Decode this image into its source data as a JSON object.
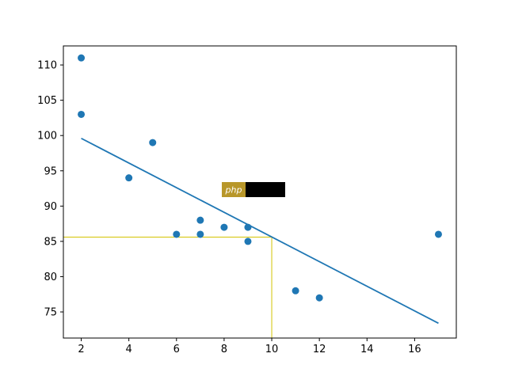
{
  "chart_data": {
    "type": "scatter",
    "title": "",
    "xlabel": "",
    "ylabel": "",
    "xlim": [
      1.25,
      17.75
    ],
    "ylim": [
      71.3,
      112.7
    ],
    "x_ticks": [
      2,
      4,
      6,
      8,
      10,
      12,
      14,
      16
    ],
    "y_ticks": [
      75,
      80,
      85,
      90,
      95,
      100,
      105,
      110
    ],
    "grid": false,
    "points": {
      "x": [
        2,
        2,
        5,
        4,
        7,
        6,
        7,
        8,
        9,
        9,
        11,
        12,
        17
      ],
      "y": [
        111,
        103,
        99,
        94,
        88,
        86,
        86,
        87,
        87,
        85,
        78,
        77,
        86
      ],
      "color": "#1f77b4"
    },
    "regression_line": {
      "x": [
        2,
        17
      ],
      "y": [
        99.6,
        73.4
      ],
      "color": "#1f77b4"
    },
    "guide_lines": {
      "x": 10,
      "y": 85.6,
      "color": "#d4c300"
    },
    "watermark": {
      "text": "php",
      "color": "#b8972a"
    }
  }
}
